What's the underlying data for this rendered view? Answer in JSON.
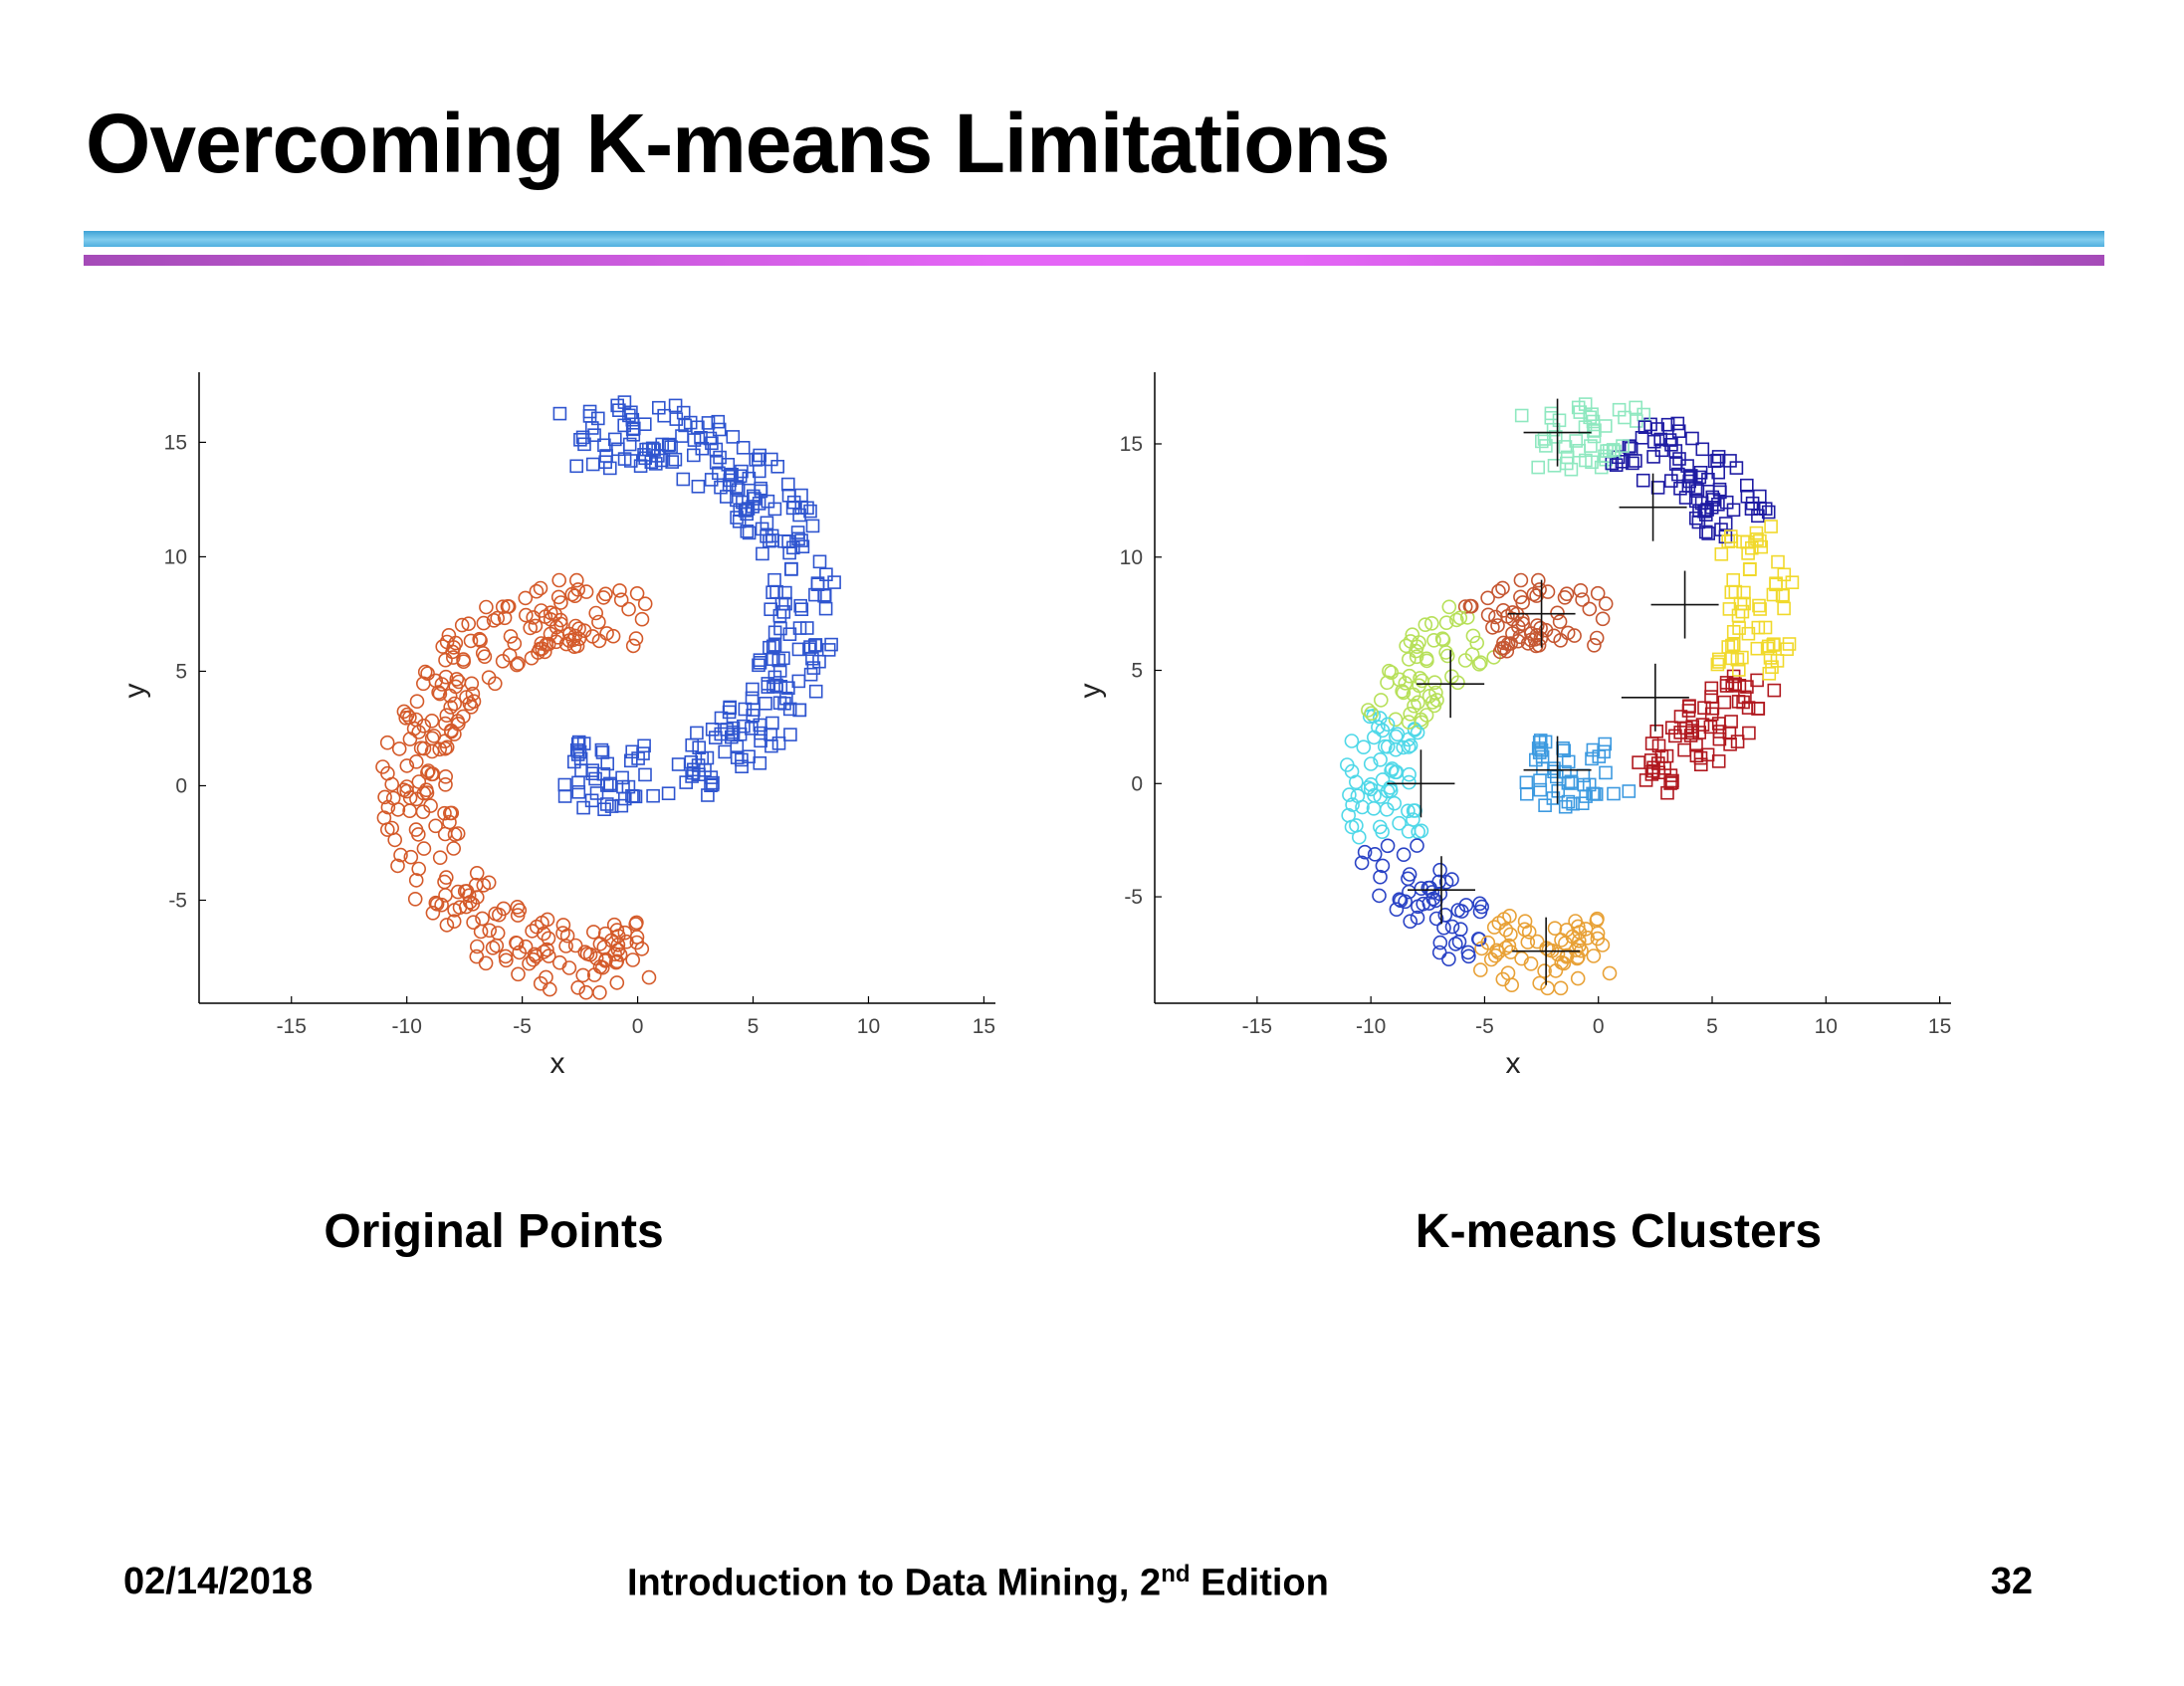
{
  "slide": {
    "title": "Overcoming K-means Limitations",
    "caption_left": "Original Points",
    "caption_right": "K-means Clusters",
    "footer": {
      "date": "02/14/2018",
      "book_prefix": "Introduction to Data Mining, 2",
      "book_sup": "nd",
      "book_suffix": " Edition",
      "page": "32"
    },
    "colors": {
      "rule_top": "#4fb0df",
      "rule_bottom": "#e465f6"
    }
  },
  "chart_data": [
    {
      "type": "scatter",
      "title": "Original Points",
      "xlabel": "x",
      "ylabel": "y",
      "xlim": [
        -19,
        15.5
      ],
      "ylim": [
        -9.5,
        17.8
      ],
      "xticks": [
        -15,
        -10,
        -5,
        0,
        5,
        10,
        15
      ],
      "yticks": [
        -5,
        0,
        5,
        10,
        15
      ],
      "grid": false,
      "legend": "none",
      "series": [
        {
          "marker": "circle",
          "color": "#d45a2a",
          "points": "arc",
          "arc": {
            "cx": -2,
            "cy": 0,
            "r": 7.6,
            "width": 3.0,
            "a0": 72,
            "a1": 290,
            "n": 300
          }
        },
        {
          "marker": "square",
          "color": "#2f55cf",
          "points": "arc",
          "arc": {
            "cx": -0.5,
            "cy": 7.8,
            "r": 7.6,
            "width": 3.0,
            "a0": -110,
            "a1": 110,
            "n": 300
          }
        }
      ]
    },
    {
      "type": "scatter",
      "title": "K-means Clusters",
      "xlabel": "x",
      "ylabel": "y",
      "xlim": [
        -19.5,
        15.5
      ],
      "ylim": [
        -9.7,
        17.9
      ],
      "xticks": [
        -15,
        -10,
        -5,
        0,
        5,
        10,
        15
      ],
      "yticks": [
        -5,
        0,
        5,
        10,
        15
      ],
      "grid": false,
      "legend": "none",
      "centroid_marker": "plus",
      "clusters": [
        {
          "marker": "circle",
          "color": "#e8a136",
          "centroid": [
            -2.3,
            -7.4
          ]
        },
        {
          "marker": "circle",
          "color": "#2a43c5",
          "centroid": [
            -6.9,
            -4.7
          ]
        },
        {
          "marker": "circle",
          "color": "#4fd8e8",
          "centroid": [
            -7.8,
            0
          ]
        },
        {
          "marker": "circle",
          "color": "#b7e05a",
          "centroid": [
            -6.5,
            4.4
          ]
        },
        {
          "marker": "circle",
          "color": "#c55631",
          "centroid": [
            -2.5,
            7.5
          ]
        },
        {
          "marker": "square",
          "color": "#3d9ae0",
          "centroid": [
            -1.8,
            0.6
          ]
        },
        {
          "marker": "square",
          "color": "#b0181e",
          "centroid": [
            2.5,
            3.8
          ]
        },
        {
          "marker": "square",
          "color": "#f1d92c",
          "centroid": [
            3.8,
            7.9
          ]
        },
        {
          "marker": "square",
          "color": "#1f1ca3",
          "centroid": [
            2.4,
            12.2
          ]
        },
        {
          "marker": "square",
          "color": "#8fe8c0",
          "centroid": [
            -1.8,
            15.5
          ]
        }
      ],
      "points": "same-as-original"
    }
  ]
}
